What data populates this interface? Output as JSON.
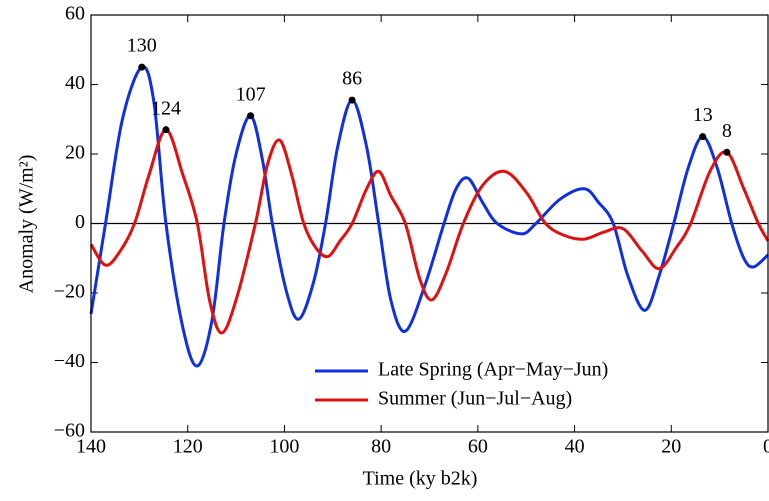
{
  "chart_data": {
    "type": "line",
    "xlabel": "Time (ky b2k)",
    "ylabel": "Anomaly (W/m²)",
    "xlim": [
      140,
      0
    ],
    "ylim": [
      -60,
      60
    ],
    "xticks": [
      140,
      120,
      100,
      80,
      60,
      40,
      20,
      0
    ],
    "yticks": [
      {
        "value": -60,
        "label": "−60"
      },
      {
        "value": -40,
        "label": "−40"
      },
      {
        "value": -20,
        "label": "−20"
      },
      0,
      20,
      40,
      60
    ],
    "legend": "lower right",
    "series": [
      {
        "name": "Late Spring (Apr−May−Jun)",
        "color": "#1030e0",
        "x": [
          140,
          137,
          133.5,
          129.5,
          127,
          124.5,
          121,
          118,
          115,
          112.5,
          110,
          107,
          104.5,
          102.5,
          99.5,
          97,
          94,
          91.5,
          89,
          86,
          83,
          80.5,
          78,
          75,
          71,
          67,
          64.5,
          62,
          59,
          56,
          51,
          48,
          43,
          38,
          35,
          32,
          29,
          25.5,
          22.5,
          19.5,
          16.5,
          13.5,
          10.5,
          7.5,
          5,
          3,
          0
        ],
        "values": [
          -26,
          0,
          30,
          45,
          35,
          0,
          -30,
          -41,
          -28,
          0,
          20,
          31,
          18,
          0,
          -20,
          -27.5,
          -17,
          0,
          22,
          35.5,
          22,
          0,
          -22,
          -31,
          -18,
          0,
          10,
          13,
          6,
          0,
          -3,
          0,
          7,
          10,
          6,
          0,
          -15,
          -25,
          -15,
          0,
          16,
          25,
          16,
          0,
          -10,
          -12.5,
          -9
        ]
      },
      {
        "name": "Summer (Jun−Jul−Aug)",
        "color": "#e01010",
        "x": [
          140,
          137,
          134,
          131,
          128,
          124.5,
          121,
          118,
          115.5,
          113,
          110,
          106,
          103.5,
          101,
          98.5,
          96,
          93.5,
          91,
          88.5,
          86,
          83,
          80.5,
          78,
          75,
          72,
          69.5,
          66.5,
          63,
          59,
          54.5,
          50,
          46,
          42,
          38,
          34,
          30,
          26,
          22.5,
          19,
          16,
          12,
          8.5,
          5,
          2,
          0
        ],
        "values": [
          -6,
          -12,
          -8,
          0,
          14,
          27,
          14,
          0,
          -22,
          -31.5,
          -22,
          0,
          17,
          24,
          14,
          0,
          -7,
          -9.5,
          -5,
          0,
          10,
          15,
          8,
          0,
          -16,
          -22,
          -14,
          0,
          11,
          15,
          9,
          0,
          -3.5,
          -4.5,
          -2.5,
          -1.5,
          -8,
          -13,
          -7,
          0,
          15,
          20.5,
          10,
          0,
          -5
        ]
      }
    ],
    "annotations": [
      {
        "text": "130",
        "x": 129.5,
        "y": 45
      },
      {
        "text": "124",
        "x": 124.5,
        "y": 27
      },
      {
        "text": "107",
        "x": 107,
        "y": 31
      },
      {
        "text": "86",
        "x": 86,
        "y": 35.5
      },
      {
        "text": "13",
        "x": 13.5,
        "y": 25
      },
      {
        "text": "8",
        "x": 8.5,
        "y": 20.5
      }
    ]
  }
}
